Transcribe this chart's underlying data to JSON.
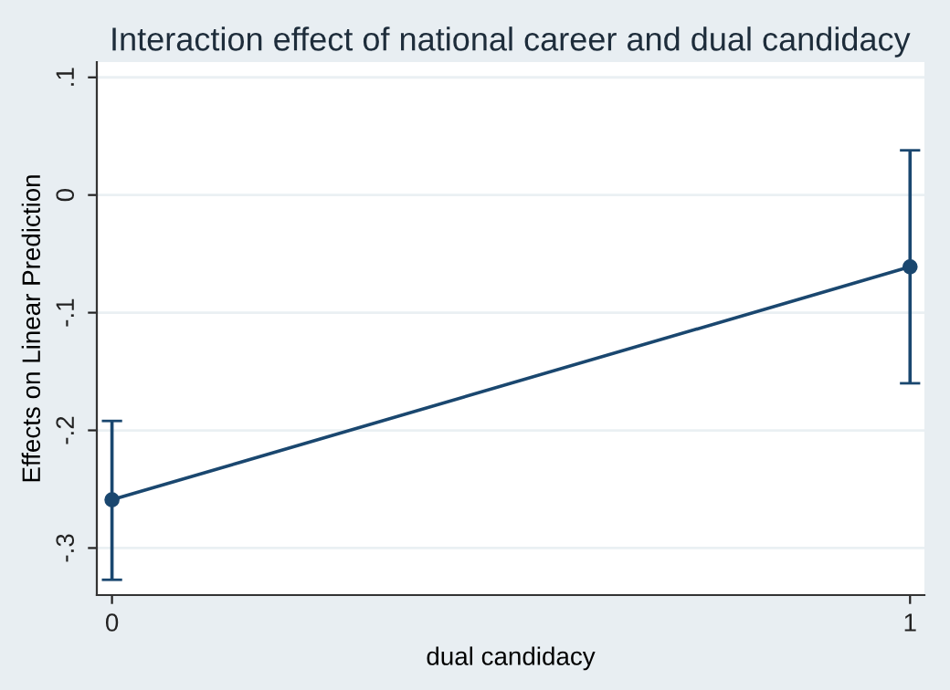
{
  "chart_data": {
    "type": "line",
    "title": "Interaction effect of national career and dual candidacy",
    "xlabel": "dual candidacy",
    "ylabel": "Effects on Linear Prediction",
    "x": [
      0,
      1
    ],
    "series": [
      {
        "color": "#1a476f",
        "values": [
          -0.259,
          -0.061
        ],
        "errors": [
          [
            -0.327,
            -0.192
          ],
          [
            -0.16,
            0.038
          ]
        ]
      }
    ],
    "xlim": [
      -0.019,
      1.018
    ],
    "xticks": [
      0,
      1
    ],
    "ylim": [
      -0.34,
      0.113
    ],
    "yticks": [
      {
        "value": 0.1,
        "label": ".1"
      },
      0,
      {
        "value": -0.1,
        "label": "-.1"
      },
      {
        "value": -0.2,
        "label": "-.2"
      },
      {
        "value": -0.3,
        "label": "-.3"
      }
    ],
    "grid": "y",
    "marker": "circle",
    "line_style": "solid"
  }
}
